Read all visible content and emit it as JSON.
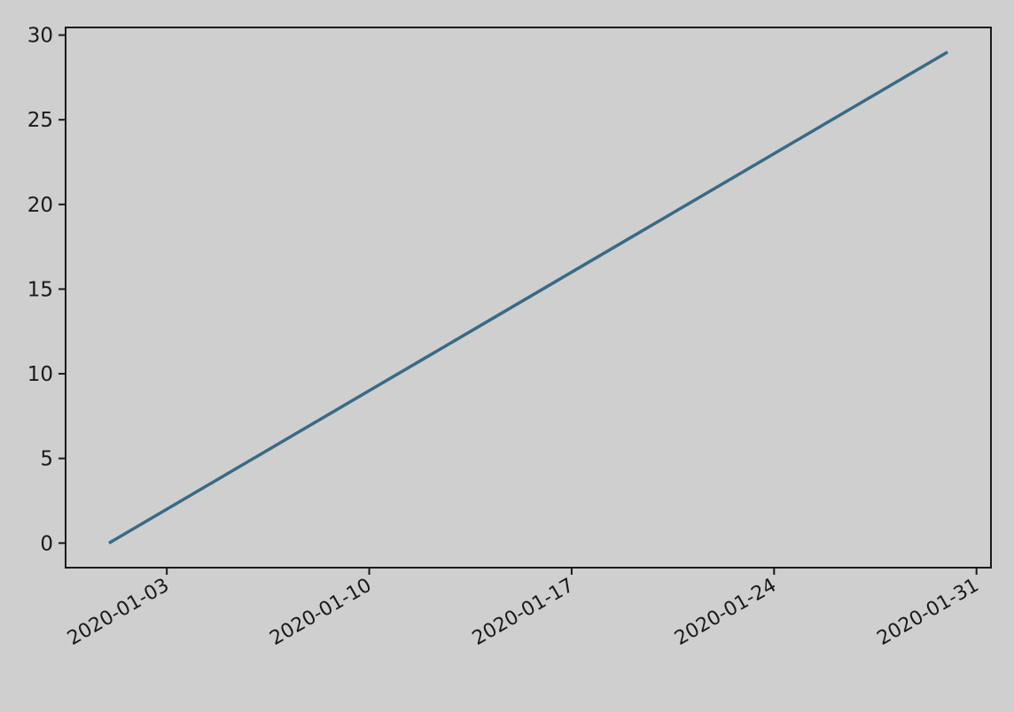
{
  "chart_data": {
    "type": "line",
    "title": "",
    "xlabel": "",
    "ylabel": "",
    "x_type": "date",
    "x": [
      "2020-01-01",
      "2020-01-02",
      "2020-01-03",
      "2020-01-04",
      "2020-01-05",
      "2020-01-06",
      "2020-01-07",
      "2020-01-08",
      "2020-01-09",
      "2020-01-10",
      "2020-01-11",
      "2020-01-12",
      "2020-01-13",
      "2020-01-14",
      "2020-01-15",
      "2020-01-16",
      "2020-01-17",
      "2020-01-18",
      "2020-01-19",
      "2020-01-20",
      "2020-01-21",
      "2020-01-22",
      "2020-01-23",
      "2020-01-24",
      "2020-01-25",
      "2020-01-26",
      "2020-01-27",
      "2020-01-28",
      "2020-01-29",
      "2020-01-30"
    ],
    "series": [
      {
        "color": "#3a6a85",
        "values": [
          0,
          1,
          2,
          3,
          4,
          5,
          6,
          7,
          8,
          9,
          10,
          11,
          12,
          13,
          14,
          15,
          16,
          17,
          18,
          19,
          20,
          21,
          22,
          23,
          24,
          25,
          26,
          27,
          28,
          29
        ]
      }
    ],
    "xlim": [
      "2019-12-30T12:00",
      "2020-01-31T12:00"
    ],
    "ylim": [
      -1.45,
      30.45
    ],
    "x_ticks": [
      "2020-01-03",
      "2020-01-10",
      "2020-01-17",
      "2020-01-24",
      "2020-01-31"
    ],
    "y_ticks": [
      0,
      5,
      10,
      15,
      20,
      25,
      30
    ],
    "grid": false,
    "legend": "none"
  },
  "colors": {
    "background": "#cfcfcf",
    "axes": "#1a1a1a",
    "line": "#3a6a85"
  }
}
